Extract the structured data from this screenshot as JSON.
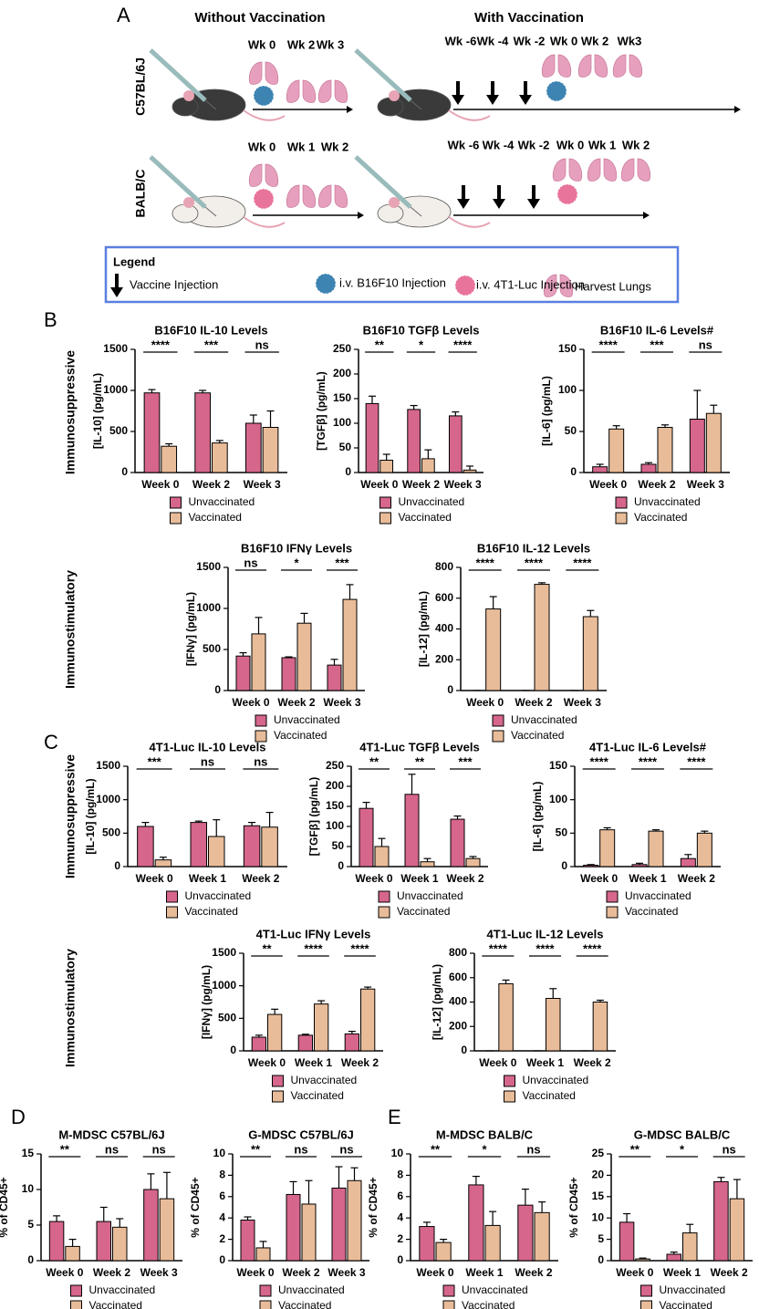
{
  "panel_labels": [
    "A",
    "B",
    "C",
    "D",
    "E"
  ],
  "row_labels": [
    "Immunosuppressive",
    "Immunostimulatory",
    "Immunosuppressive",
    "Immunostimulatory"
  ],
  "panel_a": {
    "headers": [
      "Without Vaccination",
      "With Vaccination"
    ],
    "strains": [
      "C57BL/6J",
      "BALB/C"
    ],
    "timelines": [
      [
        "Wk 0",
        "Wk 2",
        "Wk 3"
      ],
      [
        "Wk -6",
        "Wk -4",
        "Wk -2",
        "Wk 0",
        "Wk 2",
        "Wk3"
      ],
      [
        "Wk 0",
        "Wk 1",
        "Wk 2"
      ],
      [
        "Wk -6",
        "Wk -4",
        "Wk -2",
        "Wk 0",
        "Wk 1",
        "Wk 2"
      ]
    ],
    "legend": {
      "title": "Legend",
      "items": [
        "Vaccine Injection",
        "i.v. B16F10 Injection",
        "i.v. 4T1-Luc Injection",
        "Harvest Lungs"
      ]
    }
  },
  "chart_data": [
    {
      "type": "bar",
      "title": "B16F10 IL-10 Levels",
      "ylabel": "[IL-10] (pg/mL)",
      "categories": [
        "Week 0",
        "Week 2",
        "Week 3"
      ],
      "ylim": [
        0,
        1500
      ],
      "yticks": [
        0,
        500,
        1000,
        1500
      ],
      "series": [
        {
          "name": "Unvaccinated",
          "color": "#d6668b",
          "values": [
            970,
            970,
            600
          ],
          "errors": [
            40,
            30,
            100
          ]
        },
        {
          "name": "Vaccinated",
          "color": "#e9bc99",
          "values": [
            320,
            360,
            550
          ],
          "errors": [
            30,
            30,
            200
          ]
        }
      ],
      "significance": [
        "****",
        "***",
        "ns"
      ]
    },
    {
      "type": "bar",
      "title": "B16F10 TGFβ Levels",
      "ylabel": "[TGFβ] (pg/mL)",
      "categories": [
        "Week 0",
        "Week 2",
        "Week 3"
      ],
      "ylim": [
        0,
        250
      ],
      "yticks": [
        0,
        50,
        100,
        150,
        200,
        250
      ],
      "series": [
        {
          "name": "Unvaccinated",
          "color": "#d6668b",
          "values": [
            140,
            128,
            115
          ],
          "errors": [
            15,
            8,
            8
          ]
        },
        {
          "name": "Vaccinated",
          "color": "#e9bc99",
          "values": [
            25,
            28,
            5
          ],
          "errors": [
            12,
            18,
            8
          ]
        }
      ],
      "significance": [
        "**",
        "*",
        "****"
      ]
    },
    {
      "type": "bar",
      "title": "B16F10 IL-6 Levels#",
      "ylabel": "[IL-6] (pg/mL)",
      "categories": [
        "Week 0",
        "Week 2",
        "Week 3"
      ],
      "ylim": [
        0,
        150
      ],
      "yticks": [
        0,
        50,
        100,
        150
      ],
      "series": [
        {
          "name": "Unvaccinated",
          "color": "#d6668b",
          "values": [
            7,
            10,
            65
          ],
          "errors": [
            3,
            2,
            35
          ]
        },
        {
          "name": "Vaccinated",
          "color": "#e9bc99",
          "values": [
            53,
            55,
            72
          ],
          "errors": [
            4,
            3,
            10
          ]
        }
      ],
      "significance": [
        "****",
        "***",
        "ns"
      ]
    },
    {
      "type": "bar",
      "title": "B16F10 IFNγ Levels",
      "ylabel": "[IFNγ] (pg/mL)",
      "categories": [
        "Week 0",
        "Week 2",
        "Week 3"
      ],
      "ylim": [
        0,
        1500
      ],
      "yticks": [
        0,
        500,
        1000,
        1500
      ],
      "series": [
        {
          "name": "Unvaccinated",
          "color": "#d6668b",
          "values": [
            420,
            400,
            310
          ],
          "errors": [
            40,
            10,
            70
          ]
        },
        {
          "name": "Vaccinated",
          "color": "#e9bc99",
          "values": [
            690,
            820,
            1110
          ],
          "errors": [
            200,
            120,
            180
          ]
        }
      ],
      "significance": [
        "ns",
        "*",
        "***"
      ]
    },
    {
      "type": "bar",
      "title": "B16F10 IL-12 Levels",
      "ylabel": "[IL-12] (pg/mL)",
      "categories": [
        "Week 0",
        "Week 2",
        "Week 3"
      ],
      "ylim": [
        0,
        800
      ],
      "yticks": [
        0,
        200,
        400,
        600,
        800
      ],
      "series": [
        {
          "name": "Unvaccinated",
          "color": "#d6668b",
          "values": [
            0,
            0,
            0
          ],
          "errors": [
            0,
            0,
            0
          ]
        },
        {
          "name": "Vaccinated",
          "color": "#e9bc99",
          "values": [
            530,
            690,
            480
          ],
          "errors": [
            80,
            10,
            40
          ]
        }
      ],
      "significance": [
        "****",
        "****",
        "****"
      ]
    },
    {
      "type": "bar",
      "title": "4T1-Luc IL-10 Levels",
      "ylabel": "[IL-10] (pg/mL)",
      "categories": [
        "Week 0",
        "Week 1",
        "Week 2"
      ],
      "ylim": [
        0,
        1500
      ],
      "yticks": [
        0,
        500,
        1000,
        1500
      ],
      "series": [
        {
          "name": "Unvaccinated",
          "color": "#d6668b",
          "values": [
            600,
            660,
            610
          ],
          "errors": [
            60,
            20,
            50
          ]
        },
        {
          "name": "Vaccinated",
          "color": "#e9bc99",
          "values": [
            100,
            450,
            590
          ],
          "errors": [
            40,
            250,
            220
          ]
        }
      ],
      "significance": [
        "***",
        "ns",
        "ns"
      ]
    },
    {
      "type": "bar",
      "title": "4T1-Luc TGFβ Levels",
      "ylabel": "[TGFβ] (pg/mL)",
      "categories": [
        "Week 0",
        "Week 1",
        "Week 2"
      ],
      "ylim": [
        0,
        250
      ],
      "yticks": [
        0,
        50,
        100,
        150,
        200,
        250
      ],
      "series": [
        {
          "name": "Unvaccinated",
          "color": "#d6668b",
          "values": [
            145,
            180,
            118
          ],
          "errors": [
            15,
            50,
            8
          ]
        },
        {
          "name": "Vaccinated",
          "color": "#e9bc99",
          "values": [
            50,
            12,
            20
          ],
          "errors": [
            20,
            8,
            5
          ]
        }
      ],
      "significance": [
        "**",
        "**",
        "***"
      ]
    },
    {
      "type": "bar",
      "title": "4T1-Luc IL-6 Levels#",
      "ylabel": "[IL-6] (pg/mL)",
      "categories": [
        "Week 0",
        "Week 1",
        "Week 2"
      ],
      "ylim": [
        0,
        150
      ],
      "yticks": [
        0,
        50,
        100,
        150
      ],
      "series": [
        {
          "name": "Unvaccinated",
          "color": "#d6668b",
          "values": [
            2,
            3,
            12
          ],
          "errors": [
            1,
            2,
            6
          ]
        },
        {
          "name": "Vaccinated",
          "color": "#e9bc99",
          "values": [
            55,
            53,
            50
          ],
          "errors": [
            3,
            2,
            3
          ]
        }
      ],
      "significance": [
        "****",
        "****",
        "****"
      ]
    },
    {
      "type": "bar",
      "title": "4T1-Luc IFNγ Levels",
      "ylabel": "[IFNγ] (pg/mL)",
      "categories": [
        "Week 0",
        "Week 1",
        "Week 2"
      ],
      "ylim": [
        0,
        1500
      ],
      "yticks": [
        0,
        500,
        1000,
        1500
      ],
      "series": [
        {
          "name": "Unvaccinated",
          "color": "#d6668b",
          "values": [
            210,
            240,
            260
          ],
          "errors": [
            30,
            15,
            40
          ]
        },
        {
          "name": "Vaccinated",
          "color": "#e9bc99",
          "values": [
            560,
            720,
            950
          ],
          "errors": [
            80,
            50,
            30
          ]
        }
      ],
      "significance": [
        "**",
        "****",
        "****"
      ]
    },
    {
      "type": "bar",
      "title": "4T1-Luc IL-12 Levels",
      "ylabel": "[IL-12] (pg/mL)",
      "categories": [
        "Week 0",
        "Week 1",
        "Week 2"
      ],
      "ylim": [
        0,
        800
      ],
      "yticks": [
        0,
        200,
        400,
        600,
        800
      ],
      "series": [
        {
          "name": "Unvaccinated",
          "color": "#d6668b",
          "values": [
            0,
            0,
            0
          ],
          "errors": [
            0,
            0,
            0
          ]
        },
        {
          "name": "Vaccinated",
          "color": "#e9bc99",
          "values": [
            550,
            430,
            400
          ],
          "errors": [
            30,
            80,
            15
          ]
        }
      ],
      "significance": [
        "****",
        "****",
        "****"
      ]
    },
    {
      "type": "bar",
      "title": "M-MDSC C57BL/6J",
      "ylabel": "% of CD45+",
      "categories": [
        "Week 0",
        "Week 2",
        "Week 3"
      ],
      "ylim": [
        0,
        15
      ],
      "yticks": [
        0,
        5,
        10,
        15
      ],
      "series": [
        {
          "name": "Unvaccinated",
          "color": "#d6668b",
          "values": [
            5.5,
            5.5,
            10
          ],
          "errors": [
            0.8,
            2,
            2.2
          ]
        },
        {
          "name": "Vaccinated",
          "color": "#e9bc99",
          "values": [
            2,
            4.7,
            8.7
          ],
          "errors": [
            1,
            1.2,
            3.7
          ]
        }
      ],
      "significance": [
        "**",
        "ns",
        "ns"
      ]
    },
    {
      "type": "bar",
      "title": "G-MDSC C57BL/6J",
      "ylabel": "% of CD45+",
      "categories": [
        "Week 0",
        "Week 2",
        "Week 3"
      ],
      "ylim": [
        0,
        10
      ],
      "yticks": [
        0,
        2,
        4,
        6,
        8,
        10
      ],
      "series": [
        {
          "name": "Unvaccinated",
          "color": "#d6668b",
          "values": [
            3.8,
            6.2,
            6.8
          ],
          "errors": [
            0.3,
            1.2,
            2
          ]
        },
        {
          "name": "Vaccinated",
          "color": "#e9bc99",
          "values": [
            1.2,
            5.3,
            7.5
          ],
          "errors": [
            0.6,
            2.2,
            1.2
          ]
        }
      ],
      "significance": [
        "**",
        "ns",
        "ns"
      ]
    },
    {
      "type": "bar",
      "title": "M-MDSC BALB/C",
      "ylabel": "% of CD45+",
      "categories": [
        "Week 0",
        "Week 1",
        "Week 2"
      ],
      "ylim": [
        0,
        10
      ],
      "yticks": [
        0,
        2,
        4,
        6,
        8,
        10
      ],
      "series": [
        {
          "name": "Unvaccinated",
          "color": "#d6668b",
          "values": [
            3.2,
            7.1,
            5.2
          ],
          "errors": [
            0.4,
            0.8,
            1.5
          ]
        },
        {
          "name": "Vaccinated",
          "color": "#e9bc99",
          "values": [
            1.7,
            3.3,
            4.5
          ],
          "errors": [
            0.3,
            1.3,
            1
          ]
        }
      ],
      "significance": [
        "**",
        "*",
        "ns"
      ]
    },
    {
      "type": "bar",
      "title": "G-MDSC BALB/C",
      "ylabel": "% of CD45+",
      "categories": [
        "Week 0",
        "Week 1",
        "Week 2"
      ],
      "ylim": [
        0,
        25
      ],
      "yticks": [
        0,
        5,
        10,
        15,
        20,
        25
      ],
      "series": [
        {
          "name": "Unvaccinated",
          "color": "#d6668b",
          "values": [
            9,
            1.5,
            18.5
          ],
          "errors": [
            2,
            0.5,
            1
          ]
        },
        {
          "name": "Vaccinated",
          "color": "#e9bc99",
          "values": [
            0.4,
            6.5,
            14.5
          ],
          "errors": [
            0.2,
            2,
            4.5
          ]
        }
      ],
      "significance": [
        "**",
        "*",
        "ns"
      ]
    }
  ]
}
